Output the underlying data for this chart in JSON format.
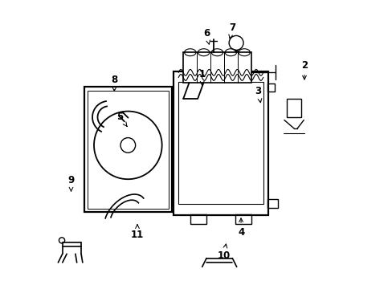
{
  "background_color": "#ffffff",
  "line_color": "#000000",
  "label_color": "#000000",
  "fig_width": 4.89,
  "fig_height": 3.6,
  "dpi": 100,
  "label_positions": {
    "1": [
      0.52,
      0.745,
      0.52,
      0.695
    ],
    "2": [
      0.875,
      0.775,
      0.875,
      0.715
    ],
    "3": [
      0.715,
      0.685,
      0.725,
      0.635
    ],
    "4": [
      0.655,
      0.195,
      0.655,
      0.255
    ],
    "5": [
      0.235,
      0.595,
      0.265,
      0.555
    ],
    "6": [
      0.535,
      0.885,
      0.545,
      0.845
    ],
    "7": [
      0.625,
      0.905,
      0.615,
      0.865
    ],
    "8": [
      0.215,
      0.725,
      0.215,
      0.675
    ],
    "9": [
      0.065,
      0.375,
      0.065,
      0.335
    ],
    "10": [
      0.595,
      0.115,
      0.605,
      0.165
    ],
    "11": [
      0.295,
      0.185,
      0.295,
      0.225
    ]
  }
}
